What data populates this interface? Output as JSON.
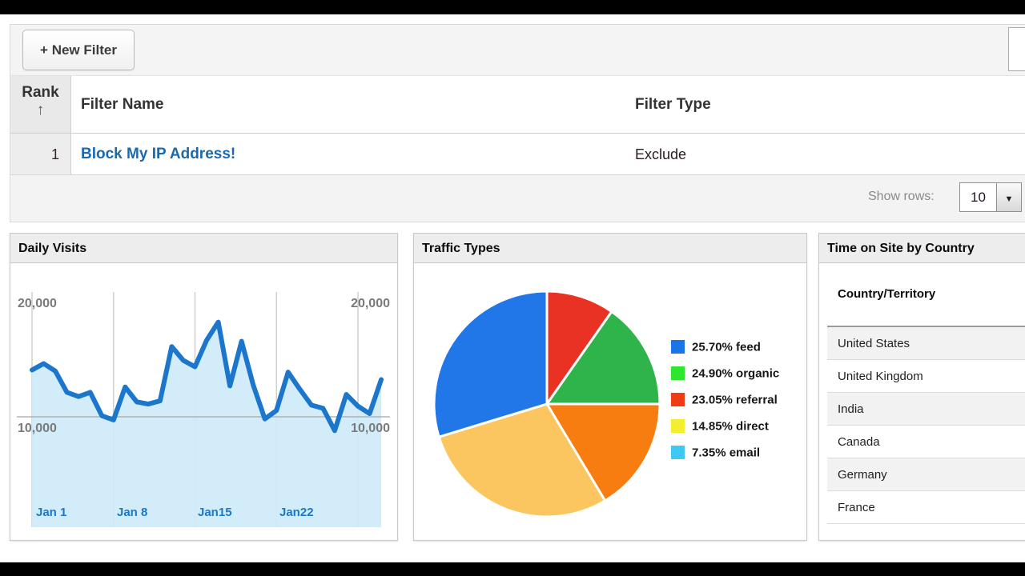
{
  "filters_table": {
    "new_filter_button": "+ New Filter",
    "search_value": "",
    "columns": {
      "rank": "Rank",
      "name": "Filter Name",
      "type": "Filter Type"
    },
    "icons": {
      "sort_asc": "↑",
      "dropdown_arrow": "▼"
    },
    "rows": [
      {
        "rank": "1",
        "name": "Block My IP Address!",
        "type": "Exclude"
      }
    ],
    "footer": {
      "show_rows_label": "Show rows:",
      "show_rows_value": "10"
    }
  },
  "panels": {
    "time_on_site": {
      "title": "Time on Site by Country",
      "column_header": "Country/Territory",
      "rows": [
        "United States",
        "United Kingdom",
        "India",
        "Canada",
        "Germany",
        "France"
      ]
    }
  },
  "chart_data": [
    {
      "type": "area",
      "title": "Daily Visits",
      "x_tick_labels": [
        "Jan 1",
        "Jan 8",
        "Jan15",
        "Jan22"
      ],
      "x_gridline_indices": [
        0,
        7,
        14,
        21,
        28
      ],
      "y_tick_labels": [
        "20,000",
        "10,000"
      ],
      "y_gridline_values": [
        20000,
        10000
      ],
      "y_axis_labels_on_both_sides": true,
      "ylim": [
        0,
        21000
      ],
      "values": [
        14400,
        15000,
        14300,
        12300,
        11900,
        12300,
        10100,
        9700,
        12800,
        11400,
        11200,
        11500,
        16600,
        15300,
        14700,
        17200,
        18900,
        12900,
        17100,
        13000,
        9800,
        10600,
        14200,
        12600,
        11100,
        10800,
        8700,
        12100,
        11000,
        10300,
        13500
      ],
      "line_color": "#1b76cc",
      "fill_color": "rgba(206,234,249,0.9)",
      "gridline_color": "#cfcfcf"
    },
    {
      "type": "pie",
      "title": "Traffic Types",
      "legend_position": "right",
      "legend": [
        {
          "pct": "25.70%",
          "label": "feed",
          "color": "#1874e8"
        },
        {
          "pct": "24.90%",
          "label": "organic",
          "color": "#2ee62e"
        },
        {
          "pct": "23.05%",
          "label": "referral",
          "color": "#f03c14"
        },
        {
          "pct": "14.85%",
          "label": "direct",
          "color": "#f3ee2e"
        },
        {
          "pct": "7.35%",
          "label": "email",
          "color": "#3fc8f4"
        }
      ],
      "slices": [
        {
          "color": "#e93223",
          "sweep_deg": 35
        },
        {
          "color": "#2eb44a",
          "sweep_deg": 55
        },
        {
          "color": "#f87d11",
          "sweep_deg": 59
        },
        {
          "color": "#fbc65f",
          "sweep_deg": 104
        },
        {
          "color": "#2177e8",
          "sweep_deg": 107
        }
      ]
    }
  ]
}
